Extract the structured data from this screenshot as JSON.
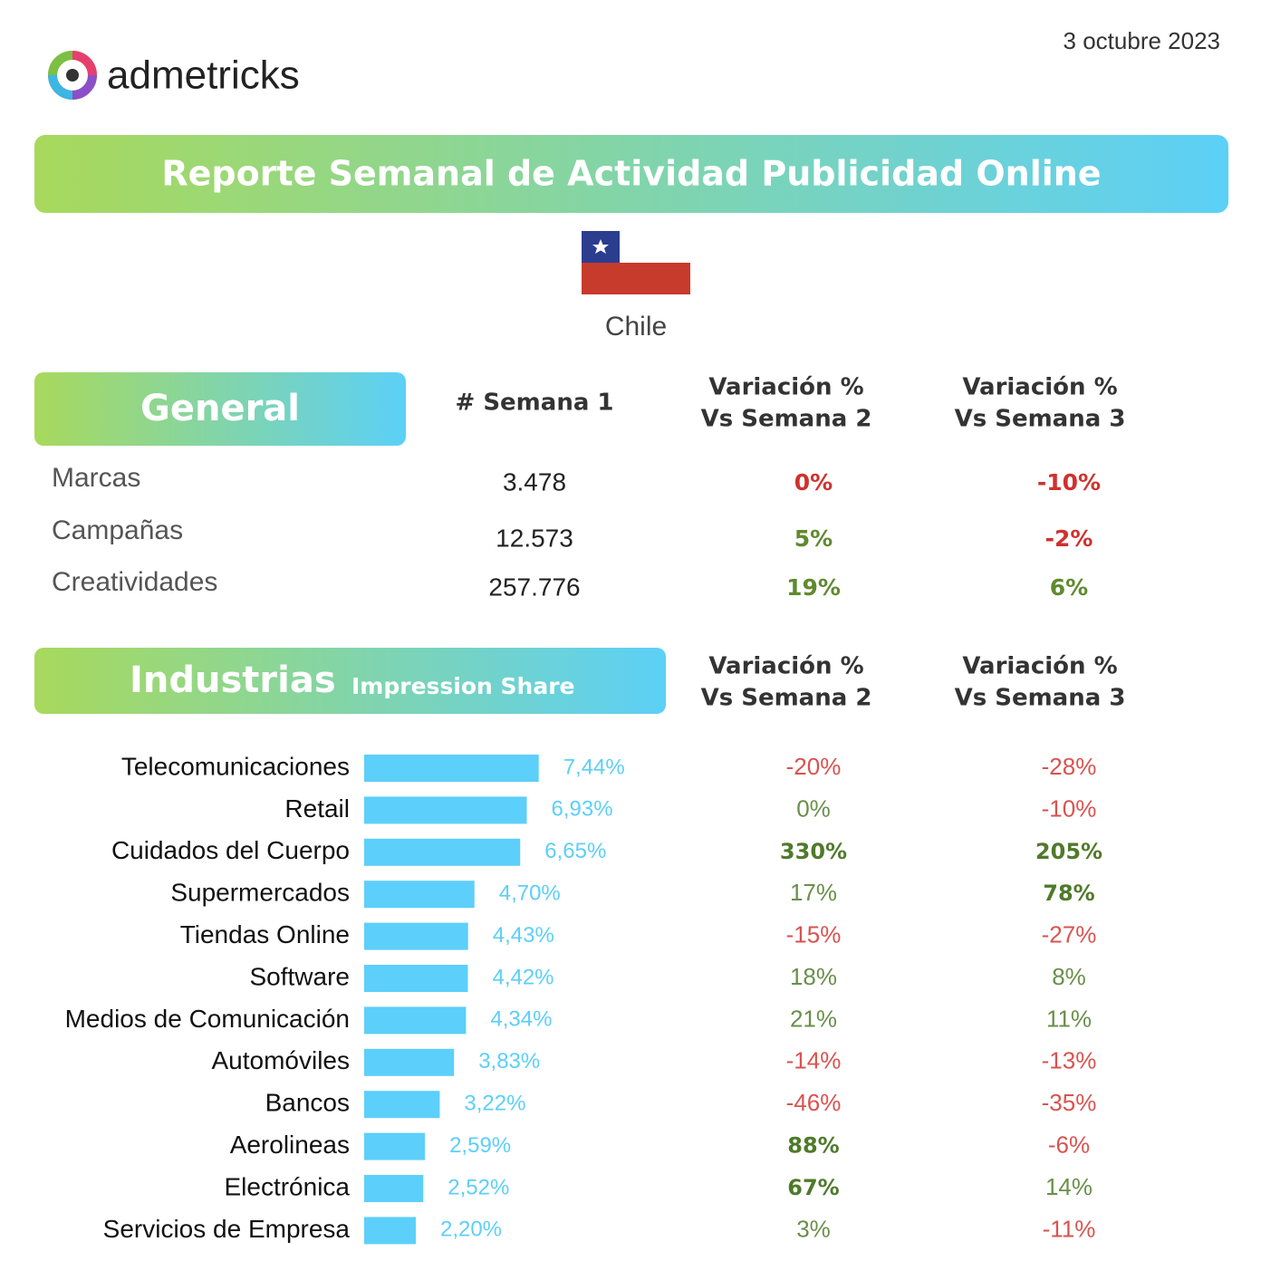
{
  "header": {
    "logo_text": "admetricks",
    "date": "3 octubre 2023",
    "title": "Reporte Semanal de Actividad Publicidad Online",
    "country": "Chile"
  },
  "general": {
    "title": "General",
    "columns": [
      [
        "# Semana 1"
      ],
      [
        "Variación %",
        "Vs Semana 2"
      ],
      [
        "Variación %",
        "Vs Semana 3"
      ]
    ],
    "rows": [
      {
        "label": "Marcas",
        "cells": [
          {
            "text": "3.478",
            "color": "#222222",
            "bold": false
          },
          {
            "text": "0%",
            "color": "#d0312d",
            "bold": true
          },
          {
            "text": "-10%",
            "color": "#d0312d",
            "bold": true
          }
        ]
      },
      {
        "label": "Campañas",
        "cells": [
          {
            "text": "12.573",
            "color": "#222222",
            "bold": false
          },
          {
            "text": "5%",
            "color": "#5f8a2e",
            "bold": true
          },
          {
            "text": "-2%",
            "color": "#d0312d",
            "bold": true
          }
        ]
      },
      {
        "label": "Creatividades",
        "cells": [
          {
            "text": "257.776",
            "color": "#222222",
            "bold": false
          },
          {
            "text": "19%",
            "color": "#5f8a2e",
            "bold": true
          },
          {
            "text": "6%",
            "color": "#5f8a2e",
            "bold": true
          }
        ]
      }
    ]
  },
  "industries": {
    "title": "Industrias",
    "subtitle": "Impression Share",
    "columns": [
      [
        "Variación %",
        "Vs Semana 2"
      ],
      [
        "Variación %",
        "Vs Semana 3"
      ]
    ],
    "rows": [
      [
        {
          "text": "-20%",
          "color": "#d9534f",
          "bold": false
        },
        {
          "text": "-28%",
          "color": "#d9534f",
          "bold": false
        }
      ],
      [
        {
          "text": "0%",
          "color": "#6a8f4a",
          "bold": false
        },
        {
          "text": "-10%",
          "color": "#d9534f",
          "bold": false
        }
      ],
      [
        {
          "text": "330%",
          "color": "#4f7a2a",
          "bold": true
        },
        {
          "text": "205%",
          "color": "#4f7a2a",
          "bold": true
        }
      ],
      [
        {
          "text": "17%",
          "color": "#6a8f4a",
          "bold": false
        },
        {
          "text": "78%",
          "color": "#4f7a2a",
          "bold": true
        }
      ],
      [
        {
          "text": "-15%",
          "color": "#d9534f",
          "bold": false
        },
        {
          "text": "-27%",
          "color": "#d9534f",
          "bold": false
        }
      ],
      [
        {
          "text": "18%",
          "color": "#6a8f4a",
          "bold": false
        },
        {
          "text": "8%",
          "color": "#6a8f4a",
          "bold": false
        }
      ],
      [
        {
          "text": "21%",
          "color": "#6a8f4a",
          "bold": false
        },
        {
          "text": "11%",
          "color": "#6a8f4a",
          "bold": false
        }
      ],
      [
        {
          "text": "-14%",
          "color": "#d9534f",
          "bold": false
        },
        {
          "text": "-13%",
          "color": "#d9534f",
          "bold": false
        }
      ],
      [
        {
          "text": "-46%",
          "color": "#d9534f",
          "bold": false
        },
        {
          "text": "-35%",
          "color": "#d9534f",
          "bold": false
        }
      ],
      [
        {
          "text": "88%",
          "color": "#4f7a2a",
          "bold": true
        },
        {
          "text": "-6%",
          "color": "#d9534f",
          "bold": false
        }
      ],
      [
        {
          "text": "67%",
          "color": "#4f7a2a",
          "bold": true
        },
        {
          "text": "14%",
          "color": "#6a8f4a",
          "bold": false
        }
      ],
      [
        {
          "text": "3%",
          "color": "#6a8f4a",
          "bold": false
        },
        {
          "text": "-11%",
          "color": "#d9534f",
          "bold": false
        }
      ]
    ]
  },
  "chart_data": {
    "type": "bar",
    "orientation": "horizontal",
    "categories": [
      "Telecomunicaciones",
      "Retail",
      "Cuidados del Cuerpo",
      "Supermercados",
      "Tiendas Online",
      "Software",
      "Medios de Comunicación",
      "Automóviles",
      "Bancos",
      "Aerolineas",
      "Electrónica",
      "Servicios de Empresa"
    ],
    "values": [
      7.44,
      6.93,
      6.65,
      4.7,
      4.43,
      4.42,
      4.34,
      3.83,
      3.22,
      2.59,
      2.52,
      2.2
    ],
    "value_labels": [
      "7,44%",
      "6,93%",
      "6,65%",
      "4,70%",
      "4,43%",
      "4,42%",
      "4,34%",
      "3,83%",
      "3,22%",
      "2,59%",
      "2,52%",
      "2,20%"
    ],
    "color": "#5ccffa"
  }
}
